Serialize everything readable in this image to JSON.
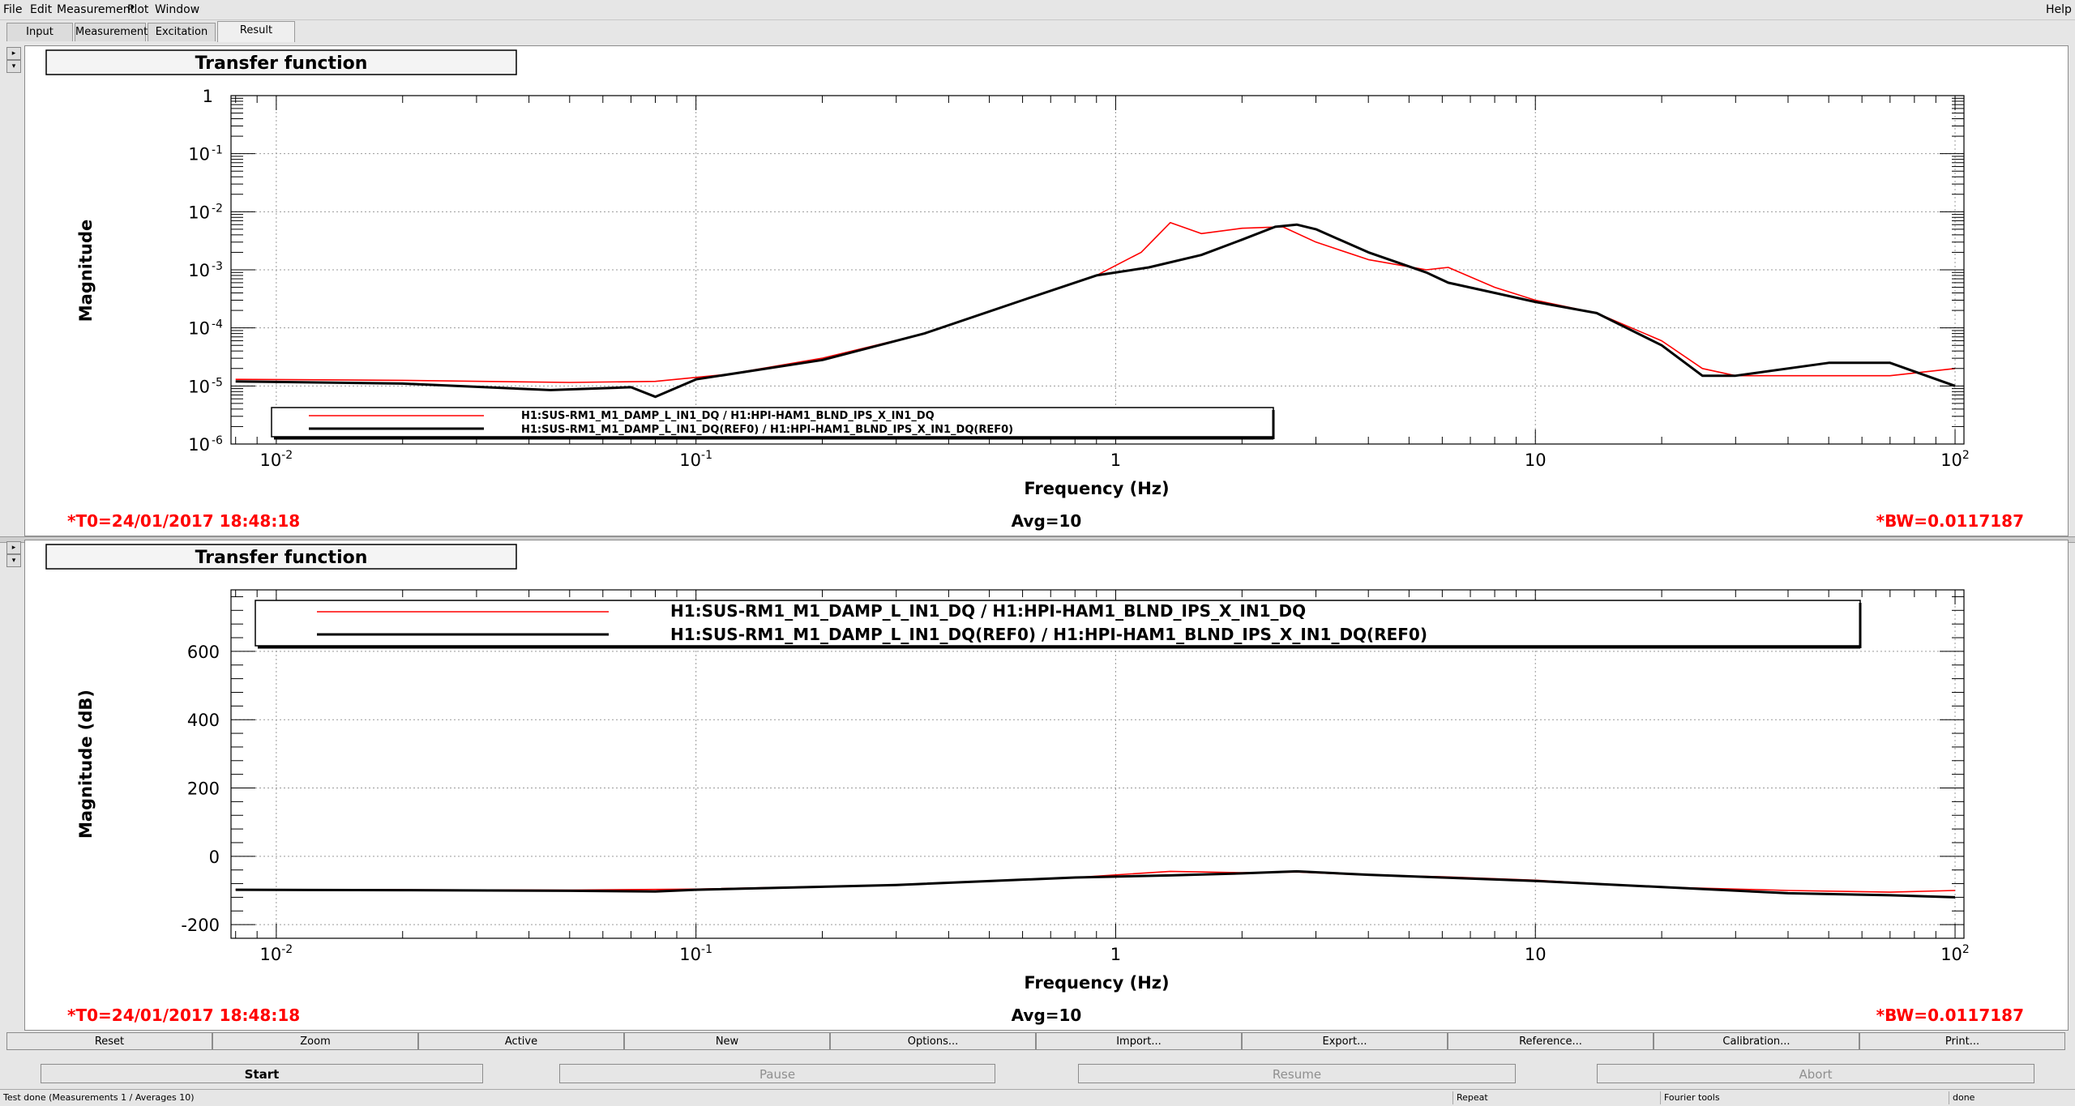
{
  "menu": [
    "File",
    "Edit",
    "Measurement",
    "Plot",
    "Window"
  ],
  "help": "Help",
  "tabs": [
    "Input",
    "Measurement",
    "Excitation",
    "Result"
  ],
  "active_tab": "Result",
  "plots": [
    {
      "title": "Transfer function",
      "ylabel": "Magnitude",
      "xlabel": "Frequency (Hz)",
      "t0": "*T0=24/01/2017 18:48:18",
      "avg": "Avg=10",
      "bw": "*BW=0.0117187",
      "legend": [
        "H1:SUS-RM1_M1_DAMP_L_IN1_DQ / H1:HPI-HAM1_BLND_IPS_X_IN1_DQ",
        "H1:SUS-RM1_M1_DAMP_L_IN1_DQ(REF0) / H1:HPI-HAM1_BLND_IPS_X_IN1_DQ(REF0)"
      ],
      "xticks": [
        "10",
        "10",
        "1",
        "10",
        "10"
      ],
      "xtick_exp": [
        "-2",
        "-1",
        "",
        "",
        "2"
      ],
      "yticks": [
        "1",
        "10",
        "10",
        "10",
        "10",
        "10",
        "10"
      ],
      "ytick_exp": [
        "",
        "-1",
        "-2",
        "-3",
        "-4",
        "-5",
        "-6"
      ]
    },
    {
      "title": "Transfer function",
      "ylabel": "Magnitude (dB)",
      "xlabel": "Frequency (Hz)",
      "t0": "*T0=24/01/2017 18:48:18",
      "avg": "Avg=10",
      "bw": "*BW=0.0117187",
      "legend": [
        "H1:SUS-RM1_M1_DAMP_L_IN1_DQ / H1:HPI-HAM1_BLND_IPS_X_IN1_DQ",
        "H1:SUS-RM1_M1_DAMP_L_IN1_DQ(REF0) / H1:HPI-HAM1_BLND_IPS_X_IN1_DQ(REF0)"
      ],
      "xticks": [
        "10",
        "10",
        "1",
        "10",
        "10"
      ],
      "xtick_exp": [
        "-2",
        "-1",
        "",
        "",
        "2"
      ],
      "yticks": [
        "600",
        "400",
        "200",
        "0",
        "-200"
      ]
    }
  ],
  "chart_data": [
    {
      "type": "line",
      "title": "Transfer function",
      "xlabel": "Frequency (Hz)",
      "ylabel": "Magnitude",
      "xscale": "log",
      "yscale": "log",
      "xlim": [
        0.0078,
        105
      ],
      "ylim": [
        1e-06,
        1
      ],
      "grid": true,
      "legend_position": "bottom-left",
      "series": [
        {
          "name": "H1:SUS-RM1_M1_DAMP_L_IN1_DQ / H1:HPI-HAM1_BLND_IPS_X_IN1_DQ",
          "color": "#ff0000",
          "x": [
            0.008,
            0.02,
            0.05,
            0.08,
            0.12,
            0.2,
            0.35,
            0.6,
            0.9,
            1.15,
            1.35,
            1.6,
            2.0,
            2.5,
            3.0,
            4.0,
            5.5,
            6.2,
            8.0,
            10,
            14,
            20,
            25,
            30,
            50,
            70,
            100
          ],
          "y": [
            1.3e-05,
            1.25e-05,
            1.15e-05,
            1.2e-05,
            1.6e-05,
            3e-05,
            8e-05,
            0.0003,
            0.0008,
            0.002,
            0.0065,
            0.0042,
            0.0052,
            0.0055,
            0.003,
            0.0015,
            0.001,
            0.0011,
            0.0005,
            0.0003,
            0.00018,
            6e-05,
            2e-05,
            1.5e-05,
            1.5e-05,
            1.5e-05,
            2e-05
          ]
        },
        {
          "name": "H1:SUS-RM1_M1_DAMP_L_IN1_DQ(REF0) / H1:HPI-HAM1_BLND_IPS_X_IN1_DQ(REF0)",
          "color": "#000000",
          "x": [
            0.008,
            0.02,
            0.045,
            0.07,
            0.08,
            0.1,
            0.2,
            0.35,
            0.6,
            0.9,
            1.2,
            1.6,
            2.0,
            2.4,
            2.7,
            3.0,
            4.0,
            5.5,
            6.2,
            8.0,
            10,
            14,
            20,
            25,
            30,
            50,
            70,
            100
          ],
          "y": [
            1.2e-05,
            1.1e-05,
            8.5e-06,
            9.5e-06,
            6.5e-06,
            1.3e-05,
            2.8e-05,
            8e-05,
            0.0003,
            0.0008,
            0.0011,
            0.0018,
            0.0033,
            0.0055,
            0.006,
            0.005,
            0.002,
            0.0009,
            0.0006,
            0.0004,
            0.00028,
            0.00018,
            5e-05,
            1.5e-05,
            1.5e-05,
            2.5e-05,
            2.5e-05,
            1e-05
          ]
        }
      ]
    },
    {
      "type": "line",
      "title": "Transfer function",
      "xlabel": "Frequency (Hz)",
      "ylabel": "Magnitude (dB)",
      "xscale": "log",
      "xlim": [
        0.0078,
        105
      ],
      "ylim": [
        -240,
        780
      ],
      "grid": true,
      "legend_position": "top",
      "series": [
        {
          "name": "H1:SUS-RM1_M1_DAMP_L_IN1_DQ / H1:HPI-HAM1_BLND_IPS_X_IN1_DQ",
          "color": "#ff0000",
          "x": [
            0.008,
            0.02,
            0.05,
            0.1,
            0.3,
            0.8,
            1.35,
            2.0,
            2.7,
            4.0,
            6.0,
            10,
            20,
            40,
            70,
            100
          ],
          "y": [
            -98,
            -98,
            -99,
            -96,
            -84,
            -62,
            -44,
            -48,
            -46,
            -55,
            -60,
            -70,
            -90,
            -100,
            -105,
            -100
          ]
        },
        {
          "name": "H1:SUS-RM1_M1_DAMP_L_IN1_DQ(REF0) / H1:HPI-HAM1_BLND_IPS_X_IN1_DQ(REF0)",
          "color": "#000000",
          "x": [
            0.008,
            0.02,
            0.05,
            0.08,
            0.1,
            0.3,
            0.8,
            1.35,
            2.0,
            2.7,
            4.0,
            6.0,
            10,
            20,
            40,
            70,
            100
          ],
          "y": [
            -98,
            -99,
            -101,
            -103,
            -98,
            -84,
            -62,
            -56,
            -50,
            -44,
            -54,
            -62,
            -72,
            -90,
            -108,
            -114,
            -120
          ]
        }
      ]
    }
  ],
  "buttons": [
    "Reset",
    "Zoom",
    "Active",
    "New",
    "Options...",
    "Import...",
    "Export...",
    "Reference...",
    "Calibration...",
    "Print..."
  ],
  "controls": [
    "Start",
    "Pause",
    "Resume",
    "Abort"
  ],
  "status": [
    "Test done (Measurements 1 / Averages 10)",
    "Repeat",
    "Fourier tools",
    "done"
  ]
}
